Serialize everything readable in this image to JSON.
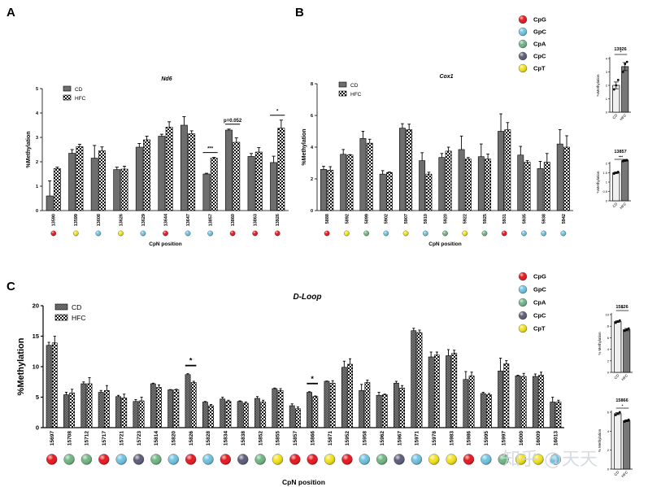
{
  "watermark": "知乎 @天天",
  "nucleotide_legend": [
    {
      "label": "CpG",
      "color": "#e8141c"
    },
    {
      "label": "GpC",
      "color": "#6ec3e2"
    },
    {
      "label": "CpA",
      "color": "#6fb583"
    },
    {
      "label": "CpC",
      "color": "#5b5b78"
    },
    {
      "label": "CpT",
      "color": "#f2e31a"
    }
  ],
  "chart_data": [
    {
      "panel": "A",
      "type": "bar",
      "title": "Nd6",
      "xlabel": "CpN position",
      "ylabel": "%Methylation",
      "ylim": [
        0,
        5
      ],
      "yticks": [
        0,
        1,
        2,
        3,
        4,
        5
      ],
      "legend": [
        "CD",
        "HFC"
      ],
      "legend_position": "top-left",
      "categories": [
        "13590",
        "13599",
        "13608",
        "13626",
        "13629",
        "13644",
        "13647",
        "13857",
        "13860",
        "13863",
        "13926"
      ],
      "cpn_type": [
        "CpG",
        "CpT",
        "GpC",
        "CpT",
        "GpC",
        "CpG",
        "GpC",
        "GpC",
        "CpG",
        "CpG",
        "CpG"
      ],
      "series": [
        {
          "name": "CD",
          "values": [
            0.6,
            2.35,
            2.15,
            1.68,
            2.6,
            3.05,
            3.5,
            1.5,
            3.3,
            2.22,
            1.97
          ],
          "errors": [
            0.62,
            0.15,
            0.52,
            0.1,
            0.15,
            0.08,
            0.35,
            0.03,
            0.04,
            0.12,
            0.26
          ]
        },
        {
          "name": "HFC",
          "values": [
            1.72,
            2.62,
            2.45,
            1.7,
            2.9,
            3.42,
            3.15,
            2.15,
            2.8,
            2.4,
            3.38
          ],
          "errors": [
            0.06,
            0.1,
            0.16,
            0.12,
            0.15,
            0.22,
            0.12,
            0.03,
            0.18,
            0.18,
            0.33
          ]
        }
      ],
      "annotations": [
        {
          "category": "13857",
          "text": "***"
        },
        {
          "category": "13860",
          "text": "p=0.052"
        },
        {
          "category": "13926",
          "text": "*"
        }
      ]
    },
    {
      "panel": "B",
      "type": "bar",
      "title": "Cox1",
      "xlabel": "CpN position",
      "ylabel": "%Methylation",
      "ylim": [
        0,
        8
      ],
      "yticks": [
        0,
        2,
        4,
        6,
        8
      ],
      "legend": [
        "CD",
        "HFC"
      ],
      "legend_position": "top-left",
      "categories": [
        "5888",
        "5892",
        "5899",
        "5902",
        "5907",
        "5910",
        "5920",
        "5922",
        "5925",
        "5931",
        "5935",
        "5938",
        "5942"
      ],
      "cpn_type": [
        "CpG",
        "CpT",
        "CpA",
        "GpC",
        "CpT",
        "GpC",
        "CpA",
        "CpT",
        "CpA",
        "CpG",
        "GpC",
        "GpC",
        "GpC"
      ],
      "series": [
        {
          "name": "CD",
          "values": [
            2.6,
            3.55,
            4.55,
            2.3,
            5.2,
            3.15,
            3.35,
            3.85,
            3.4,
            5.0,
            3.5,
            2.65,
            4.2
          ],
          "errors": [
            0.2,
            0.3,
            0.45,
            0.22,
            0.28,
            0.5,
            0.25,
            0.85,
            0.8,
            1.1,
            0.55,
            0.45,
            0.9
          ]
        },
        {
          "name": "HFC",
          "values": [
            2.55,
            3.5,
            4.25,
            2.4,
            5.1,
            2.3,
            3.75,
            3.25,
            3.25,
            5.1,
            3.05,
            3.05,
            4.0
          ],
          "errors": [
            0.22,
            0.03,
            0.25,
            0.04,
            0.35,
            0.12,
            0.25,
            0.1,
            0.32,
            0.45,
            0.1,
            0.55,
            0.72
          ]
        }
      ],
      "annotations": []
    },
    {
      "panel": "C",
      "type": "bar",
      "title": "D-Loop",
      "xlabel": "CpN position",
      "ylabel": "%Methylation",
      "ylim": [
        0,
        20
      ],
      "yticks": [
        0,
        5,
        10,
        15,
        20
      ],
      "legend": [
        "CD",
        "HFC"
      ],
      "legend_position": "top-left",
      "categories": [
        "15697",
        "15708",
        "15712",
        "15717",
        "15721",
        "15723",
        "15814",
        "15820",
        "15826",
        "15828",
        "15834",
        "15838",
        "15852",
        "15855",
        "15857",
        "15866",
        "15871",
        "15952",
        "15958",
        "15962",
        "15967",
        "15971",
        "15978",
        "15983",
        "15986",
        "15995",
        "15997",
        "16000",
        "16009",
        "16013"
      ],
      "cpn_type": [
        "CpG",
        "CpA",
        "CpA",
        "CpG",
        "GpC",
        "CpC",
        "CpA",
        "GpC",
        "CpG",
        "GpC",
        "CpG",
        "CpC",
        "CpA",
        "CpT",
        "CpG",
        "CpG",
        "CpT",
        "CpG",
        "GpC",
        "CpA",
        "CpC",
        "GpC",
        "CpT",
        "CpT",
        "CpG",
        "GpC",
        "CpA",
        "CpT",
        "CpT",
        "GpC"
      ],
      "series": [
        {
          "name": "CD",
          "values": [
            13.5,
            5.4,
            7.2,
            5.8,
            5.1,
            4.3,
            7.2,
            6.2,
            8.7,
            4.2,
            4.7,
            4.3,
            4.8,
            6.4,
            3.6,
            5.8,
            7.6,
            9.9,
            6.1,
            5.3,
            7.3,
            15.9,
            11.6,
            11.8,
            7.9,
            5.6,
            9.3,
            8.5,
            8.4,
            4.2
          ],
          "errors": [
            0.5,
            0.4,
            0.3,
            0.3,
            0.2,
            0.3,
            0.1,
            0.05,
            0.15,
            0.1,
            0.3,
            0.1,
            0.3,
            0.1,
            0.3,
            0.1,
            0.05,
            1.0,
            1.0,
            0.5,
            0.3,
            0.4,
            0.8,
            1.0,
            1.3,
            0.2,
            2.1,
            0.1,
            0.4,
            0.8
          ]
        },
        {
          "name": "HFC",
          "values": [
            13.9,
            5.7,
            7.2,
            6.1,
            4.9,
            4.4,
            6.6,
            6.2,
            7.4,
            3.6,
            4.3,
            4.0,
            4.2,
            6.1,
            3.1,
            5.1,
            7.3,
            10.4,
            7.4,
            5.4,
            6.5,
            15.6,
            11.9,
            12.2,
            8.5,
            5.4,
            10.5,
            8.4,
            8.6,
            4.2
          ],
          "errors": [
            1.1,
            0.6,
            1.0,
            0.8,
            0.6,
            0.6,
            0.4,
            0.1,
            0.2,
            0.2,
            0.2,
            0.2,
            0.3,
            0.3,
            0.3,
            0.1,
            0.4,
            0.9,
            0.4,
            0.1,
            0.4,
            0.4,
            0.5,
            0.5,
            0.6,
            0.2,
            0.5,
            0.5,
            0.5,
            0.3
          ]
        }
      ],
      "annotations": [
        {
          "category": "15826",
          "text": "*"
        },
        {
          "category": "15866",
          "text": "*"
        }
      ]
    },
    {
      "panel": "A-inset",
      "type": "bar",
      "title": "13926",
      "ylabel": "%Methylation",
      "ylim": [
        0,
        4
      ],
      "yticks": [
        0,
        1,
        2,
        3,
        4
      ],
      "categories": [
        "CD",
        "HFC"
      ],
      "values": [
        2.0,
        3.4
      ],
      "errors": [
        0.25,
        0.3
      ],
      "points": [
        [
          1.7,
          2.0,
          2.4
        ],
        [
          3.0,
          3.6,
          3.75
        ]
      ],
      "significance": "*"
    },
    {
      "panel": "A-inset",
      "type": "bar",
      "title": "13857",
      "ylabel": "%Methylation",
      "ylim": [
        0,
        2.0
      ],
      "yticks": [
        0.0,
        0.5,
        1.0,
        1.5,
        2.0
      ],
      "categories": [
        "CD",
        "HFC"
      ],
      "values": [
        1.5,
        2.15
      ],
      "errors": [
        0.04,
        0.03
      ],
      "points": [
        [
          1.45,
          1.5,
          1.55
        ],
        [
          2.12,
          2.15,
          2.18
        ]
      ],
      "significance": "***"
    },
    {
      "panel": "C-inset",
      "type": "bar",
      "title": "15826",
      "ylabel": "% Methylation",
      "ylim": [
        0,
        10
      ],
      "yticks": [
        0,
        2,
        4,
        6,
        8,
        10
      ],
      "categories": [
        "CD",
        "HFC"
      ],
      "values": [
        8.8,
        7.4
      ],
      "errors": [
        0.15,
        0.2
      ],
      "points": [
        [
          8.6,
          8.8,
          9.0
        ],
        [
          7.2,
          7.4,
          7.6
        ]
      ],
      "significance": "*"
    },
    {
      "panel": "C-inset",
      "type": "bar",
      "title": "15866",
      "ylabel": "% Methylation",
      "ylim": [
        0,
        6
      ],
      "yticks": [
        0,
        2,
        4,
        6
      ],
      "categories": [
        "CD",
        "HFC"
      ],
      "values": [
        5.85,
        5.1
      ],
      "errors": [
        0.1,
        0.1
      ],
      "points": [
        [
          5.7,
          5.85,
          6.0
        ],
        [
          5.0,
          5.1,
          5.2
        ]
      ],
      "significance": "*"
    }
  ]
}
